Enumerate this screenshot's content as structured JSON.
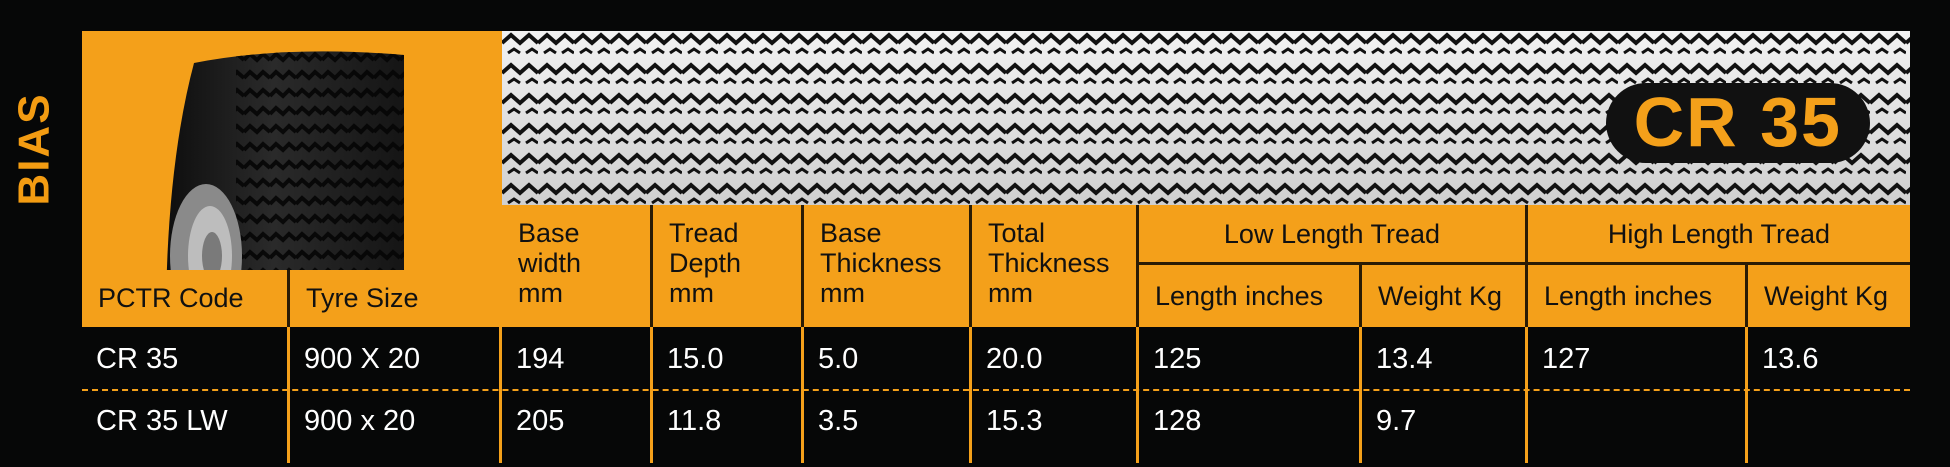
{
  "category": "BIAS",
  "model_badge": "CR 35",
  "table": {
    "headers": {
      "pctr_code": "PCTR Code",
      "tyre_size": "Tyre Size",
      "base_width": "Base\nwidth\nmm",
      "tread_depth": "Tread\nDepth\nmm",
      "base_thickness": "Base\nThickness\nmm",
      "total_thickness": "Total\nThickness\nmm",
      "low_length_tread": "Low Length Tread",
      "high_length_tread": "High Length Tread",
      "low_length_inches": "Length inches",
      "low_weight_kg": "Weight Kg",
      "high_length_inches": "Length inches",
      "high_weight_kg": "Weight Kg"
    },
    "rows": [
      [
        "CR 35",
        "900 X 20",
        "194",
        "15.0",
        "5.0",
        "20.0",
        "125",
        "13.4",
        "127",
        "13.6"
      ],
      [
        "CR 35 LW",
        "900 x 20",
        "205",
        "11.8",
        "3.5",
        "15.3",
        "128",
        "9.7",
        "",
        ""
      ]
    ]
  },
  "colors": {
    "accent": "#f4a01a",
    "background": "#060707",
    "banner": "#e9e9e9"
  },
  "icons": {
    "tire": "tire-image",
    "tread": "tread-pattern"
  }
}
